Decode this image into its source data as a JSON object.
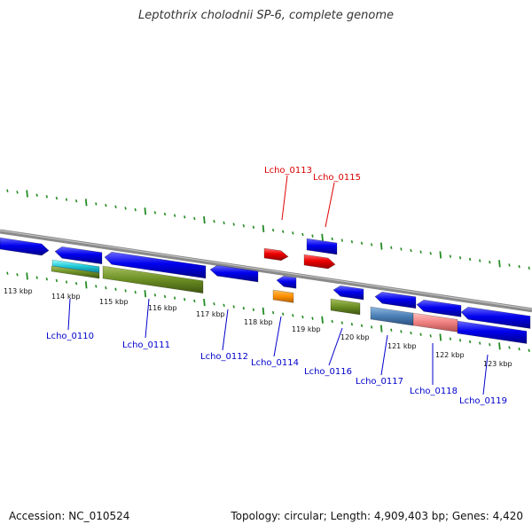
{
  "title": "Leptothrix cholodnii SP-6, complete genome",
  "footer": {
    "accession": "Accession: NC_010524",
    "topology": "Topology: circular; Length: 4,909,403 bp; Genes: 4,420"
  },
  "colors": {
    "cds": "#0000ee",
    "highlight": "#ee0000",
    "label_default": "#0000cc",
    "label_highlight": "#dd0000",
    "backbone": "#8a8a8a",
    "ticks": "#228b22"
  },
  "scale_labels": [
    "113 kbp",
    "114 kbp",
    "115 kbp",
    "116 kbp",
    "117 kbp",
    "118 kbp",
    "119 kbp",
    "120 kbp",
    "121 kbp",
    "122 kbp",
    "123 kbp"
  ],
  "gene_labels": [
    {
      "text": "Lcho_0110",
      "highlight": false
    },
    {
      "text": "Lcho_0111",
      "highlight": false
    },
    {
      "text": "Lcho_0112",
      "highlight": false
    },
    {
      "text": "Lcho_0113",
      "highlight": true
    },
    {
      "text": "Lcho_0114",
      "highlight": false
    },
    {
      "text": "Lcho_0115",
      "highlight": true
    },
    {
      "text": "Lcho_0116",
      "highlight": false
    },
    {
      "text": "Lcho_0117",
      "highlight": false
    },
    {
      "text": "Lcho_0118",
      "highlight": false
    },
    {
      "text": "Lcho_0119",
      "highlight": false
    }
  ]
}
